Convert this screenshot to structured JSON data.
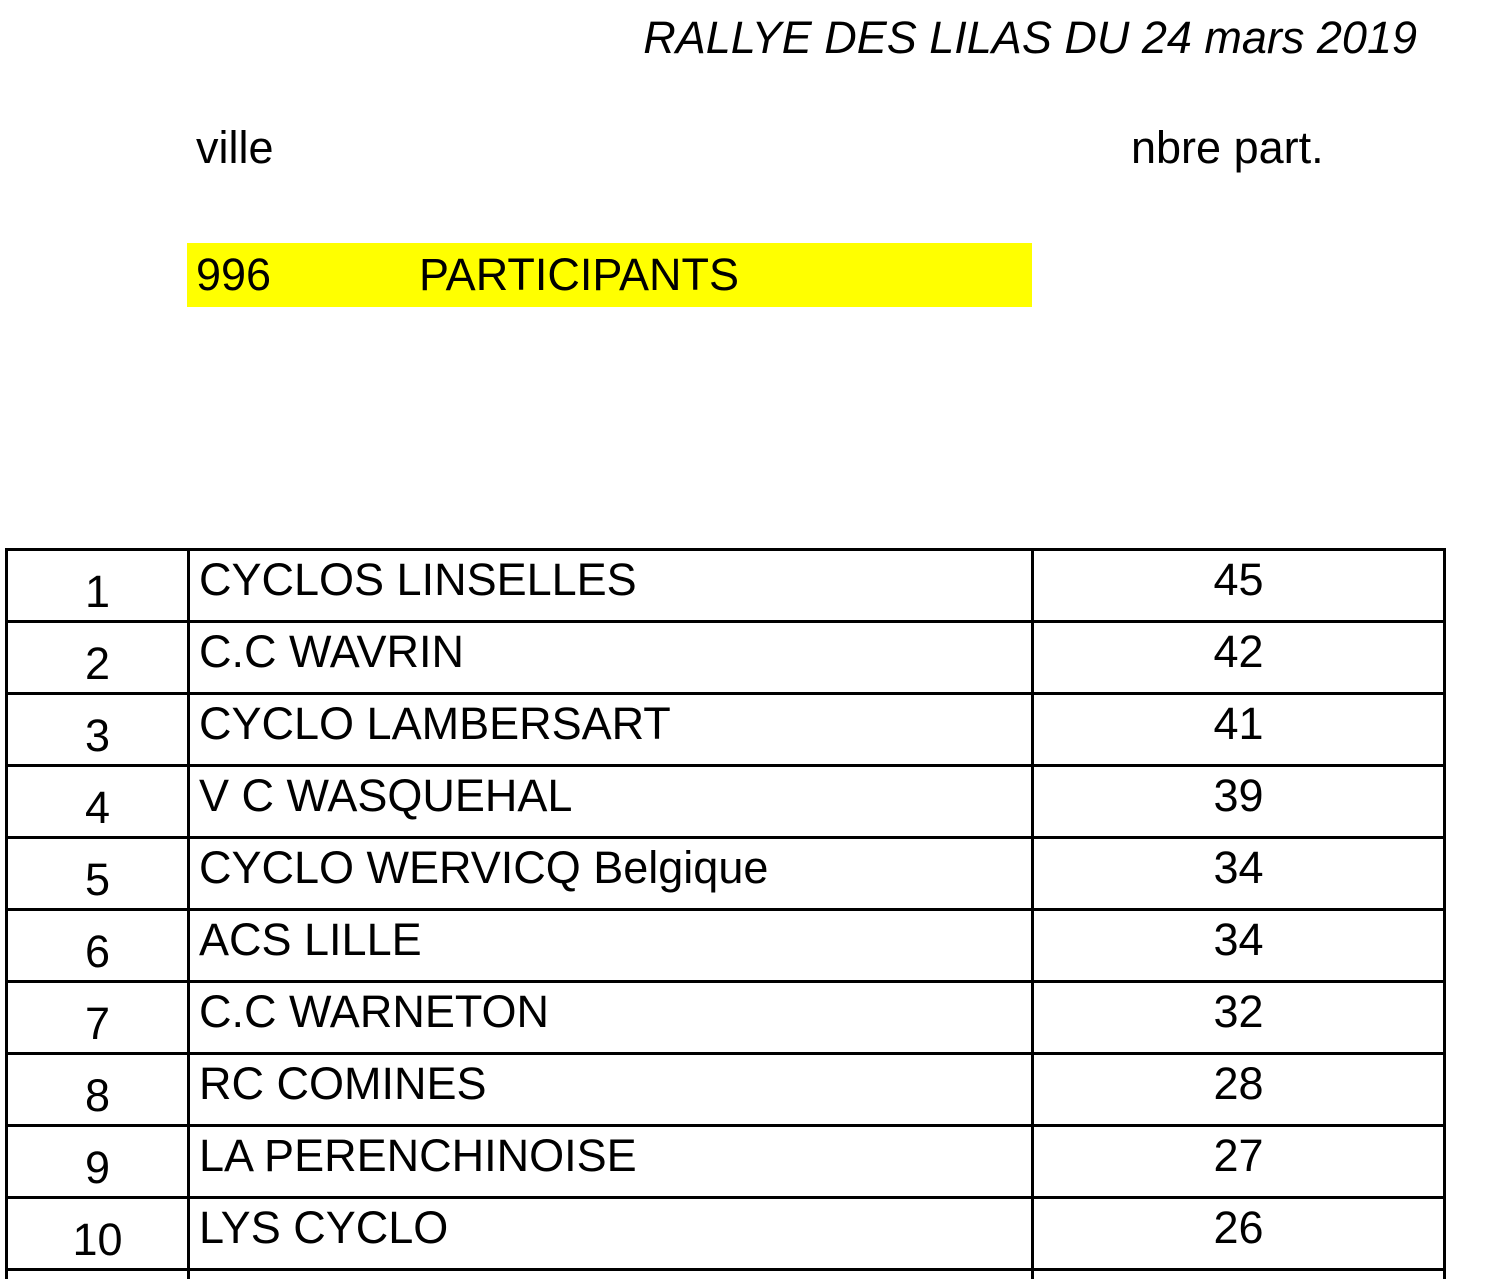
{
  "header": {
    "title": "RALLYE DES LILAS DU 24 mars 2019",
    "col_ville": "ville",
    "col_nbre": "nbre part."
  },
  "summary": {
    "total": "996",
    "label": "PARTICIPANTS",
    "highlight_color": "#ffff00"
  },
  "rows": [
    {
      "rank": "1",
      "club": "CYCLOS LINSELLES",
      "count": "45"
    },
    {
      "rank": "2",
      "club": "C.C WAVRIN",
      "count": "42"
    },
    {
      "rank": "3",
      "club": "CYCLO LAMBERSART",
      "count": "41"
    },
    {
      "rank": "4",
      "club": "V C WASQUEHAL",
      "count": "39"
    },
    {
      "rank": "5",
      "club": "CYCLO WERVICQ Belgique",
      "count": "34"
    },
    {
      "rank": "6",
      "club": "ACS LILLE",
      "count": "34"
    },
    {
      "rank": "7",
      "club": "C.C WARNETON",
      "count": "32"
    },
    {
      "rank": "8",
      "club": "RC COMINES",
      "count": "28"
    },
    {
      "rank": "9",
      "club": "LA PERENCHINOISE",
      "count": "27"
    },
    {
      "rank": "10",
      "club": "LYS CYCLO",
      "count": "26"
    }
  ]
}
